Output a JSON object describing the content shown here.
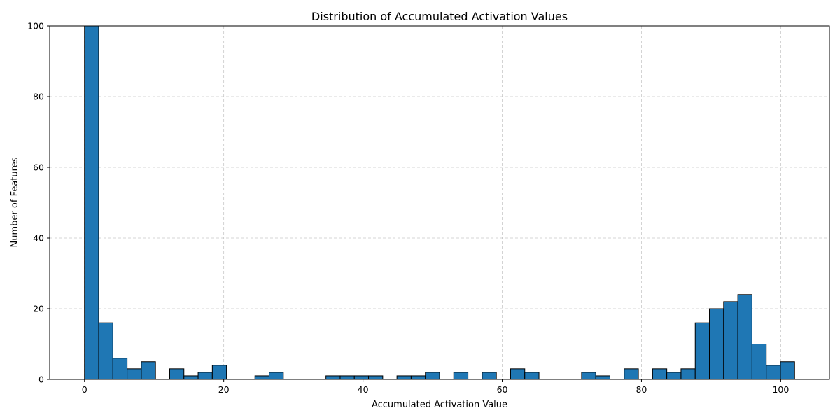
{
  "chart_data": {
    "type": "bar",
    "title": "Distribution of Accumulated Activation Values",
    "xlabel": "Accumulated Activation Value",
    "ylabel": "Number of Features",
    "xlim": [
      -5,
      107
    ],
    "ylim": [
      0,
      100
    ],
    "xticks": [
      0,
      20,
      40,
      60,
      80,
      100
    ],
    "yticks": [
      0,
      20,
      40,
      60,
      80,
      100
    ],
    "grid": true,
    "bar_color": "#1f77b4",
    "edge_color": "#000000",
    "bins": [
      {
        "start": 0.0,
        "end": 2.04,
        "count": 100
      },
      {
        "start": 2.04,
        "end": 4.08,
        "count": 16
      },
      {
        "start": 4.08,
        "end": 6.12,
        "count": 6
      },
      {
        "start": 6.12,
        "end": 8.16,
        "count": 3
      },
      {
        "start": 8.16,
        "end": 10.2,
        "count": 5
      },
      {
        "start": 12.24,
        "end": 14.28,
        "count": 3
      },
      {
        "start": 14.28,
        "end": 16.32,
        "count": 1
      },
      {
        "start": 16.32,
        "end": 18.36,
        "count": 2
      },
      {
        "start": 18.36,
        "end": 20.4,
        "count": 4
      },
      {
        "start": 24.48,
        "end": 26.52,
        "count": 1
      },
      {
        "start": 26.52,
        "end": 28.56,
        "count": 2
      },
      {
        "start": 34.68,
        "end": 36.72,
        "count": 1
      },
      {
        "start": 36.72,
        "end": 38.76,
        "count": 1
      },
      {
        "start": 38.76,
        "end": 40.8,
        "count": 1
      },
      {
        "start": 40.8,
        "end": 42.84,
        "count": 1
      },
      {
        "start": 44.88,
        "end": 46.92,
        "count": 1
      },
      {
        "start": 46.92,
        "end": 48.96,
        "count": 1
      },
      {
        "start": 48.96,
        "end": 51.0,
        "count": 2
      },
      {
        "start": 53.04,
        "end": 55.08,
        "count": 2
      },
      {
        "start": 57.12,
        "end": 59.16,
        "count": 2
      },
      {
        "start": 61.2,
        "end": 63.24,
        "count": 3
      },
      {
        "start": 63.24,
        "end": 65.28,
        "count": 2
      },
      {
        "start": 71.4,
        "end": 73.44,
        "count": 2
      },
      {
        "start": 73.44,
        "end": 75.48,
        "count": 1
      },
      {
        "start": 77.52,
        "end": 79.56,
        "count": 3
      },
      {
        "start": 81.6,
        "end": 83.64,
        "count": 3
      },
      {
        "start": 83.64,
        "end": 85.68,
        "count": 2
      },
      {
        "start": 85.68,
        "end": 87.72,
        "count": 3
      },
      {
        "start": 87.72,
        "end": 89.76,
        "count": 16
      },
      {
        "start": 89.76,
        "end": 91.8,
        "count": 20
      },
      {
        "start": 91.8,
        "end": 93.84,
        "count": 22
      },
      {
        "start": 93.84,
        "end": 95.88,
        "count": 24
      },
      {
        "start": 95.88,
        "end": 97.92,
        "count": 10
      },
      {
        "start": 97.92,
        "end": 99.96,
        "count": 4
      },
      {
        "start": 99.96,
        "end": 102.0,
        "count": 5
      }
    ]
  }
}
